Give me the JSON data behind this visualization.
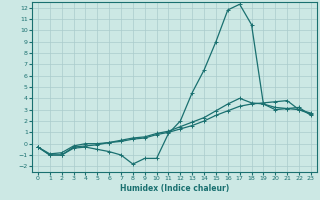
{
  "xlabel": "Humidex (Indice chaleur)",
  "xlim": [
    -0.5,
    23.5
  ],
  "ylim": [
    -2.5,
    12.5
  ],
  "xticks": [
    0,
    1,
    2,
    3,
    4,
    5,
    6,
    7,
    8,
    9,
    10,
    11,
    12,
    13,
    14,
    15,
    16,
    17,
    18,
    19,
    20,
    21,
    22,
    23
  ],
  "yticks": [
    -2,
    -1,
    0,
    1,
    2,
    3,
    4,
    5,
    6,
    7,
    8,
    9,
    10,
    11,
    12
  ],
  "bg_color": "#cce8e4",
  "grid_color": "#aacccc",
  "line_color": "#1a7070",
  "line1_x": [
    0,
    1,
    2,
    3,
    4,
    5,
    6,
    7,
    8,
    9,
    10,
    11,
    12,
    13,
    14,
    15,
    16,
    17,
    18,
    19,
    20,
    21,
    22,
    23
  ],
  "line1_y": [
    -0.3,
    -1.0,
    -1.0,
    -0.4,
    -0.3,
    -0.5,
    -0.7,
    -1.0,
    -1.8,
    -1.3,
    -1.3,
    0.9,
    2.0,
    4.5,
    6.5,
    9.0,
    11.8,
    12.3,
    10.5,
    3.5,
    3.0,
    3.1,
    3.2,
    2.5
  ],
  "line2_x": [
    0,
    1,
    2,
    3,
    4,
    5,
    6,
    7,
    8,
    9,
    10,
    11,
    12,
    13,
    14,
    15,
    16,
    17,
    18,
    19,
    20,
    21,
    22,
    23
  ],
  "line2_y": [
    -0.3,
    -1.0,
    -1.0,
    -0.3,
    -0.2,
    -0.1,
    0.1,
    0.3,
    0.5,
    0.6,
    0.9,
    1.1,
    1.5,
    1.9,
    2.3,
    2.9,
    3.5,
    4.0,
    3.6,
    3.5,
    3.2,
    3.1,
    3.0,
    2.7
  ],
  "line3_x": [
    0,
    1,
    2,
    3,
    4,
    5,
    6,
    7,
    8,
    9,
    10,
    11,
    12,
    13,
    14,
    15,
    16,
    17,
    18,
    19,
    20,
    21,
    22,
    23
  ],
  "line3_y": [
    -0.3,
    -0.9,
    -0.8,
    -0.2,
    0.0,
    0.0,
    0.1,
    0.2,
    0.4,
    0.5,
    0.8,
    1.0,
    1.3,
    1.6,
    2.0,
    2.5,
    2.9,
    3.3,
    3.5,
    3.6,
    3.7,
    3.8,
    3.0,
    2.6
  ]
}
